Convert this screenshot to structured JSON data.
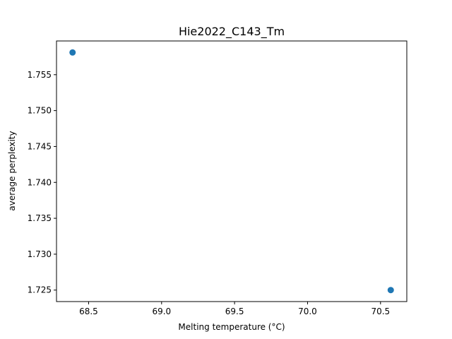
{
  "chart_data": {
    "type": "scatter",
    "title": "Hie2022_C143_Tm",
    "xlabel": "Melting temperature (°C)",
    "ylabel": "average perplexity",
    "xlim": [
      68.28,
      70.68
    ],
    "ylim": [
      1.7234,
      1.7597
    ],
    "xticks": [
      68.5,
      69.0,
      69.5,
      70.0,
      70.5
    ],
    "xtick_labels": [
      "68.5",
      "69.0",
      "69.5",
      "70.0",
      "70.5"
    ],
    "yticks": [
      1.725,
      1.73,
      1.735,
      1.74,
      1.745,
      1.75,
      1.755
    ],
    "ytick_labels": [
      "1.725",
      "1.730",
      "1.735",
      "1.740",
      "1.745",
      "1.750",
      "1.755"
    ],
    "grid": false,
    "legend": "none",
    "series": [
      {
        "x": [
          68.39,
          70.57
        ],
        "y": [
          1.7581,
          1.725
        ],
        "color": "#1f77b4"
      }
    ]
  }
}
